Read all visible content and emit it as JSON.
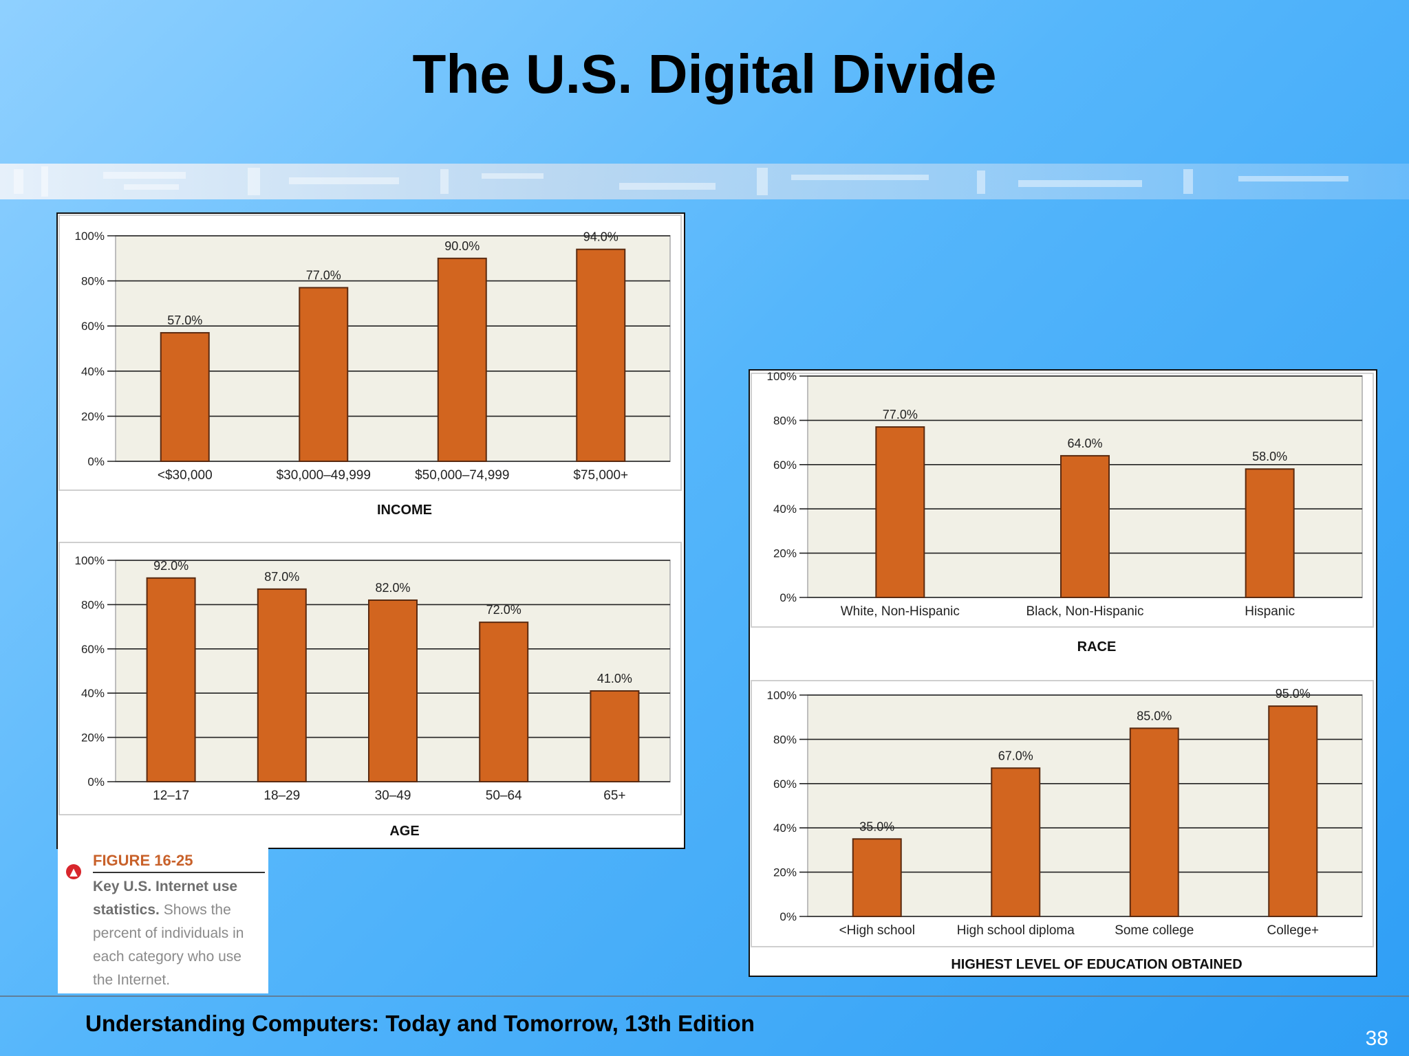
{
  "slide": {
    "title": "The U.S. Digital Divide",
    "footer": "Understanding Computers: Today and Tomorrow, 13th Edition",
    "page_number": "38"
  },
  "figure": {
    "label": "FIGURE 16-25",
    "caption_bold": "Key U.S. Internet use statistics.",
    "caption_rest": "Shows the percent of individuals in each category who use the Internet."
  },
  "colors": {
    "bar": "#d2651f",
    "bar_edge": "#5a2a10",
    "plot_bg": "#f1f0e6",
    "grid": "#222222"
  },
  "chart_data": [
    {
      "type": "bar",
      "xlabel": "INCOME",
      "categories": [
        "<$30,000",
        "$30,000–49,999",
        "$50,000–74,999",
        "$75,000+"
      ],
      "values": [
        57.0,
        77.0,
        90.0,
        94.0
      ],
      "data_labels": [
        "57.0%",
        "77.0%",
        "90.0%",
        "94.0%"
      ],
      "y_ticks": [
        "0%",
        "20%",
        "40%",
        "60%",
        "80%",
        "100%"
      ],
      "ylim": [
        0,
        100
      ],
      "grid": true
    },
    {
      "type": "bar",
      "xlabel": "AGE",
      "categories": [
        "12–17",
        "18–29",
        "30–49",
        "50–64",
        "65+"
      ],
      "values": [
        92.0,
        87.0,
        82.0,
        72.0,
        41.0
      ],
      "data_labels": [
        "92.0%",
        "87.0%",
        "82.0%",
        "72.0%",
        "41.0%"
      ],
      "y_ticks": [
        "0%",
        "20%",
        "40%",
        "60%",
        "80%",
        "100%"
      ],
      "ylim": [
        0,
        100
      ],
      "grid": true
    },
    {
      "type": "bar",
      "xlabel": "RACE",
      "categories": [
        "White, Non-Hispanic",
        "Black, Non-Hispanic",
        "Hispanic"
      ],
      "values": [
        77.0,
        64.0,
        58.0
      ],
      "data_labels": [
        "77.0%",
        "64.0%",
        "58.0%"
      ],
      "y_ticks": [
        "0%",
        "20%",
        "40%",
        "60%",
        "80%",
        "100%"
      ],
      "ylim": [
        0,
        100
      ],
      "grid": true
    },
    {
      "type": "bar",
      "xlabel": "HIGHEST LEVEL OF EDUCATION OBTAINED",
      "categories": [
        "<High school",
        "High school diploma",
        "Some college",
        "College+"
      ],
      "values": [
        35.0,
        67.0,
        85.0,
        95.0
      ],
      "data_labels": [
        "35.0%",
        "67.0%",
        "85.0%",
        "95.0%"
      ],
      "y_ticks": [
        "0%",
        "20%",
        "40%",
        "60%",
        "80%",
        "100%"
      ],
      "ylim": [
        0,
        100
      ],
      "grid": true
    }
  ]
}
